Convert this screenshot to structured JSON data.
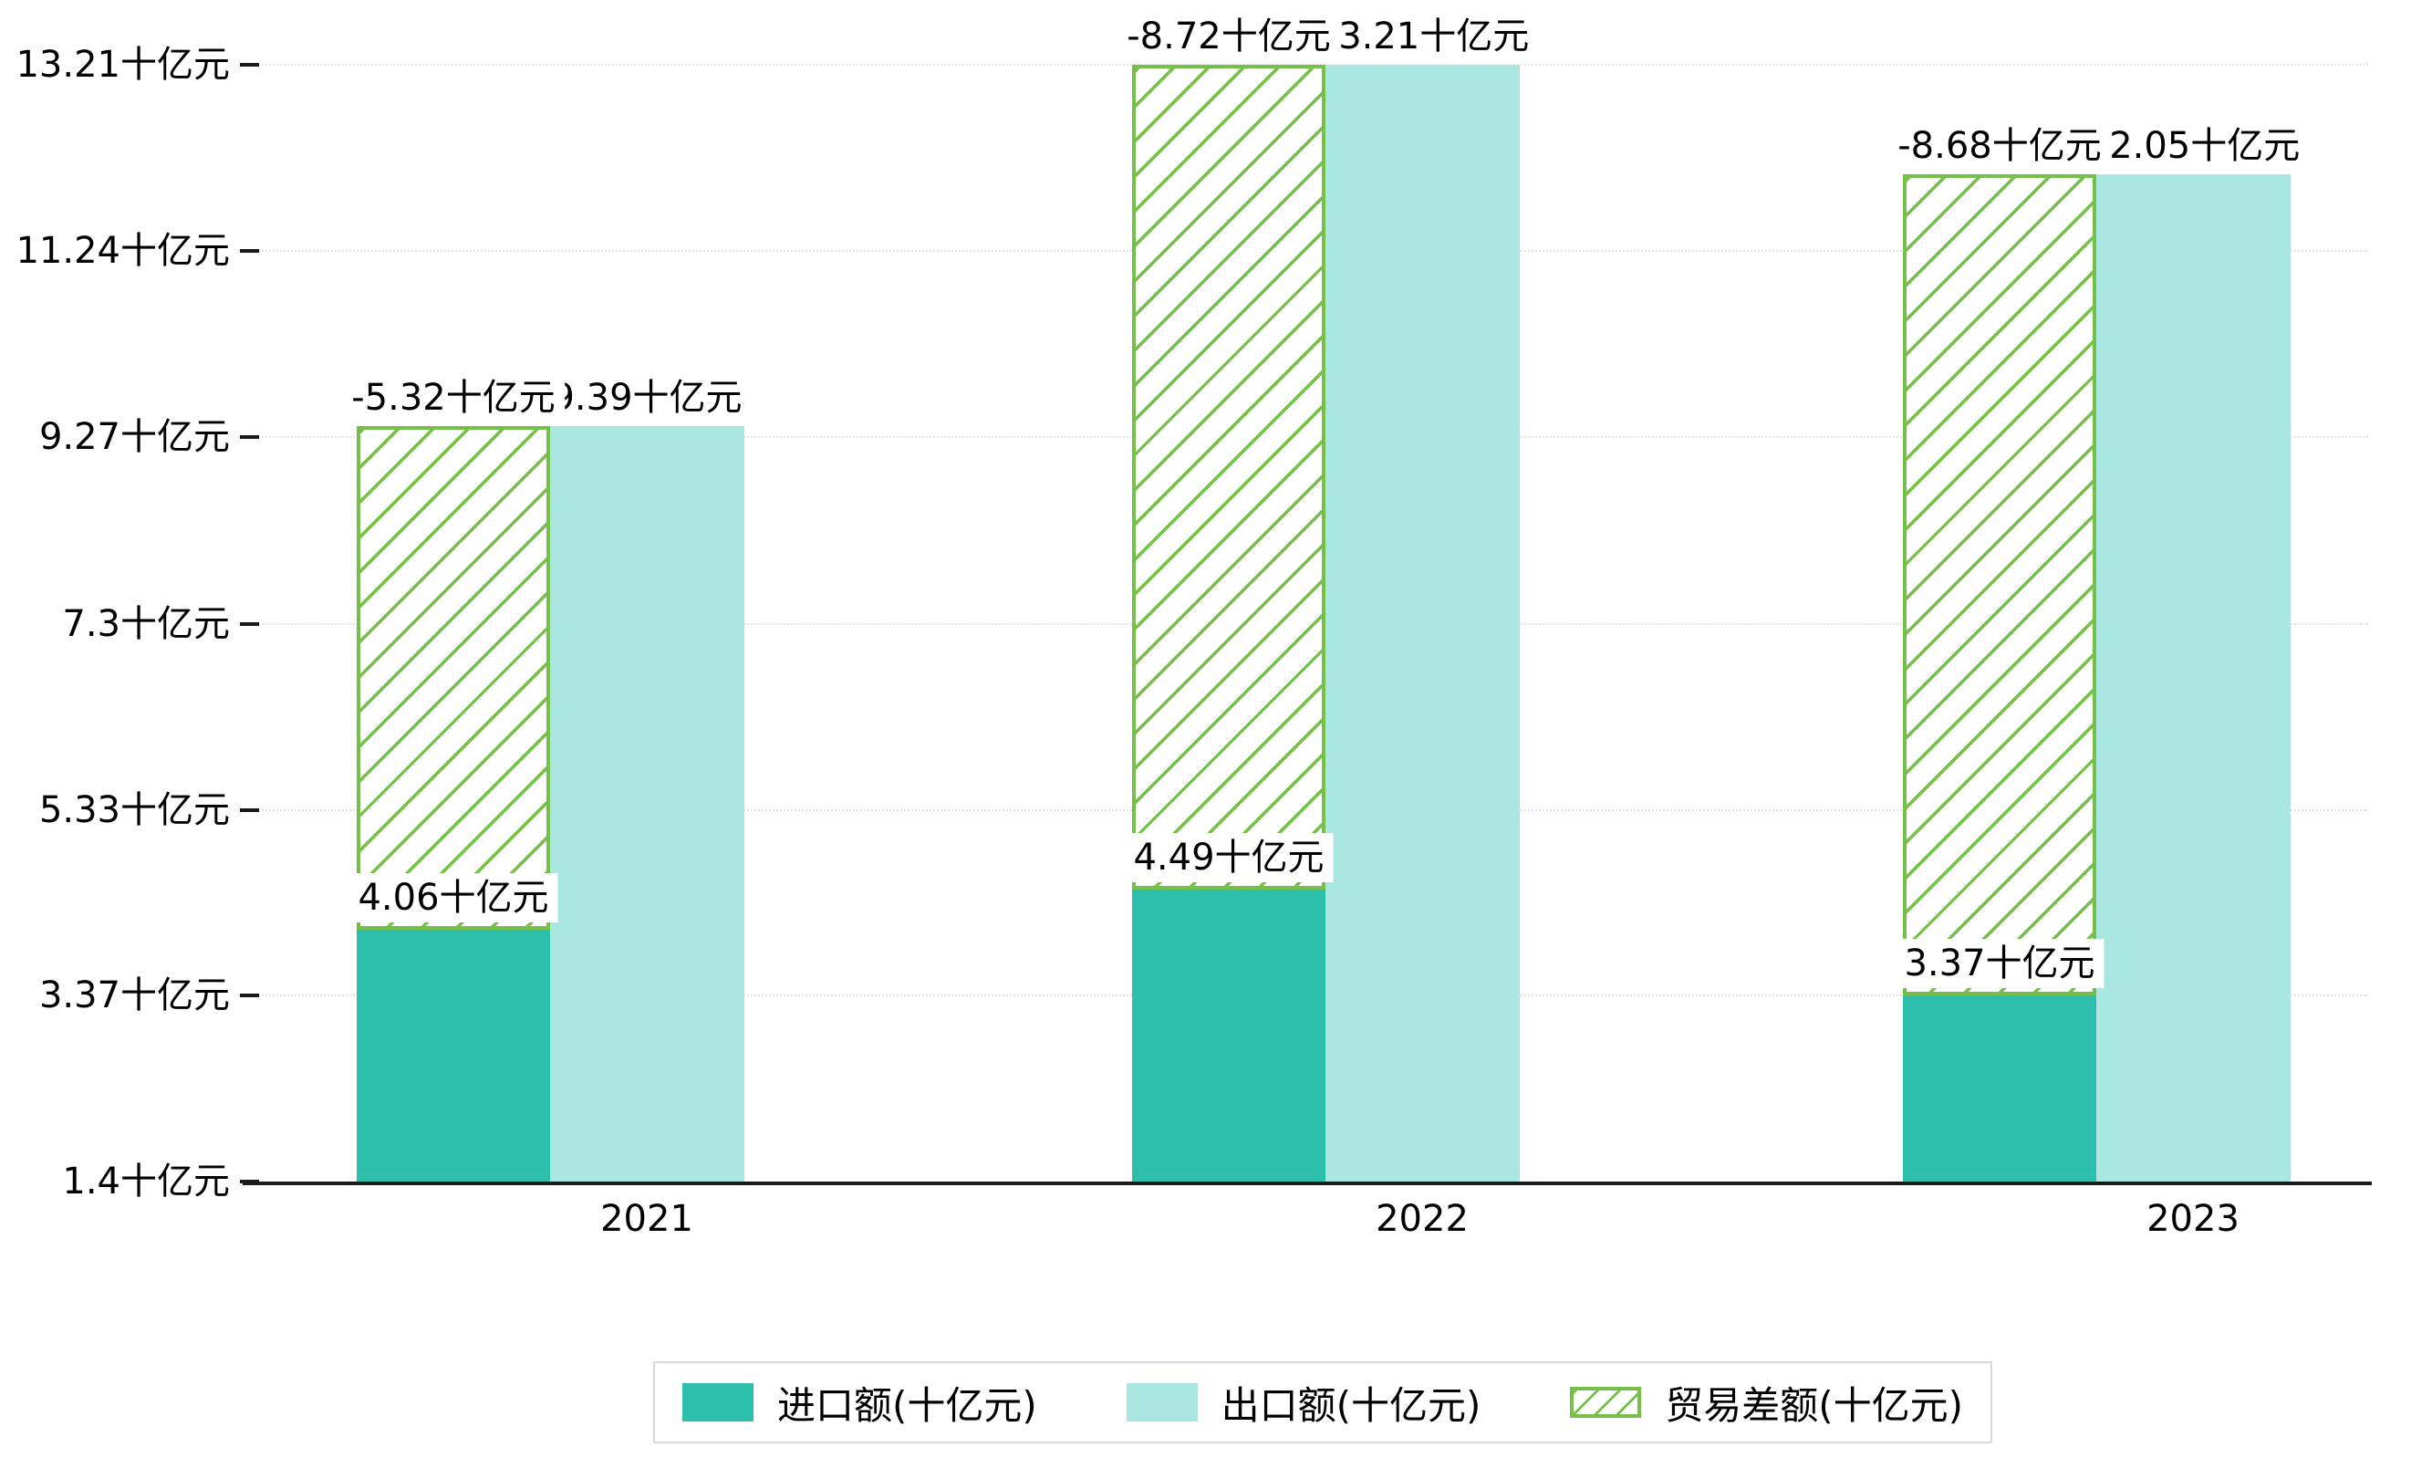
{
  "chart_data": {
    "type": "bar",
    "title": "",
    "unit": "十亿元",
    "categories": [
      "2021",
      "2022",
      "2023"
    ],
    "series": [
      {
        "name": "进口额(十亿元)",
        "role": "import",
        "values": [
          4.06,
          4.49,
          3.37
        ],
        "data_labels": [
          "4.06十亿元",
          "4.49十亿元",
          "3.37十亿元"
        ],
        "color": "#2ebfac",
        "pattern": "solid"
      },
      {
        "name": "出口额(十亿元)",
        "role": "export",
        "values": [
          9.39,
          13.21,
          12.05
        ],
        "data_labels": [
          "9.39十亿元",
          "13.21十亿元",
          "12.05十亿元"
        ],
        "color": "#aae7e0",
        "pattern": "solid"
      },
      {
        "name": "贸易差额(十亿元)",
        "role": "trade-balance",
        "values": [
          -5.32,
          -8.72,
          -8.68
        ],
        "data_labels": [
          "-5.32十亿元",
          "-8.72十亿元",
          "-8.68十亿元"
        ],
        "color": "#74c048",
        "pattern": "diagonal-hatch"
      }
    ],
    "y_axis": {
      "min": 1.4,
      "max": 13.21,
      "tick_values": [
        13.21,
        11.24,
        9.27,
        7.3,
        5.33,
        3.37,
        1.4
      ],
      "tick_labels": [
        "13.21十亿元",
        "11.24十亿元",
        "9.27十亿元",
        "7.3十亿元",
        "5.33十亿元",
        "3.37十亿元",
        "1.4十亿元"
      ]
    },
    "x_axis": {
      "tick_labels": [
        "2021",
        "2022",
        "2023"
      ]
    },
    "legend": {
      "position": "bottom-center",
      "entries": [
        "进口额(十亿元)",
        "出口额(十亿元)",
        "贸易差额(十亿元)"
      ]
    },
    "grid": {
      "horizontal_dotted": true
    }
  },
  "colors": {
    "import_series": "#2ebfac",
    "export_series": "#aae7e0",
    "trade_balance_series": "#74c048",
    "grid": "#e3e3e3",
    "axis": "#1a1a1a",
    "text": "#000000",
    "label_background": "#ffffff",
    "legend_border": "#d9d9d9",
    "background": "#ffffff"
  }
}
